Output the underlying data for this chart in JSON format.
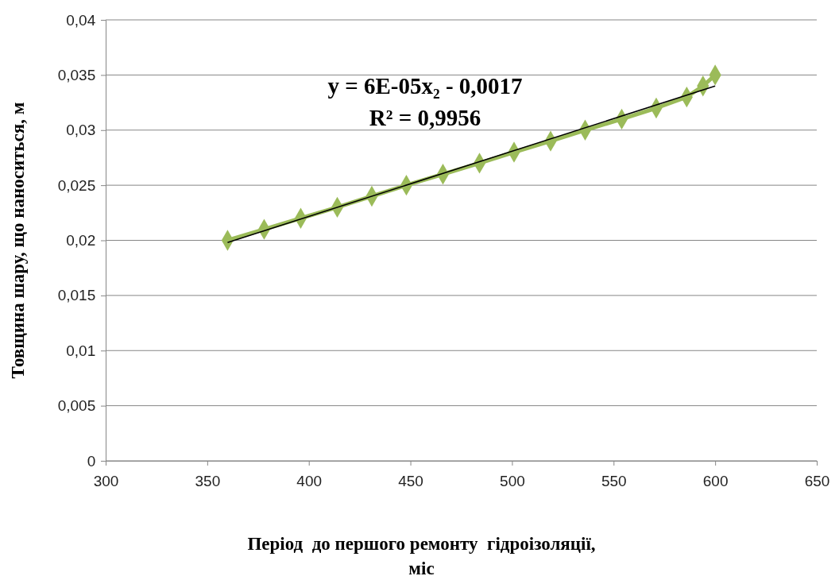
{
  "chart_data": {
    "type": "line",
    "xlabel": "Період  до першого ремонту  гідроізоляції, міс",
    "ylabel": "Товщина шару, що наноситься, м",
    "annotations": [
      "y = 6E-05x₂ - 0,0017",
      "R² = 0,9956"
    ],
    "xlim": [
      300,
      650
    ],
    "xticks": [
      300,
      350,
      400,
      450,
      500,
      550,
      600,
      650
    ],
    "ylim": [
      0,
      0.04
    ],
    "yticks": [
      0,
      {
        "value": 0.005,
        "label": "0,005"
      },
      {
        "value": 0.01,
        "label": "0,01"
      },
      {
        "value": 0.015,
        "label": "0,015"
      },
      {
        "value": 0.02,
        "label": "0,02"
      },
      {
        "value": 0.025,
        "label": "0,025"
      },
      {
        "value": 0.03,
        "label": "0,03"
      },
      {
        "value": 0.035,
        "label": "0,035"
      },
      {
        "value": 0.04,
        "label": "0,04"
      }
    ],
    "grid": "y",
    "series": [
      {
        "color": "#9bbb59",
        "marker": "diamond",
        "x": [
          360,
          378,
          396,
          414,
          431,
          448,
          466,
          484,
          501,
          519,
          536,
          554,
          571,
          586,
          594,
          600
        ],
        "values": [
          0.02,
          0.021,
          0.022,
          0.023,
          0.024,
          0.025,
          0.026,
          0.027,
          0.028,
          0.029,
          0.03,
          0.031,
          0.032,
          0.033,
          0.034,
          0.035
        ]
      },
      {
        "color": "#000000",
        "marker": "none",
        "x": [
          360,
          600
        ],
        "values": [
          0.0198,
          0.034
        ]
      }
    ]
  }
}
